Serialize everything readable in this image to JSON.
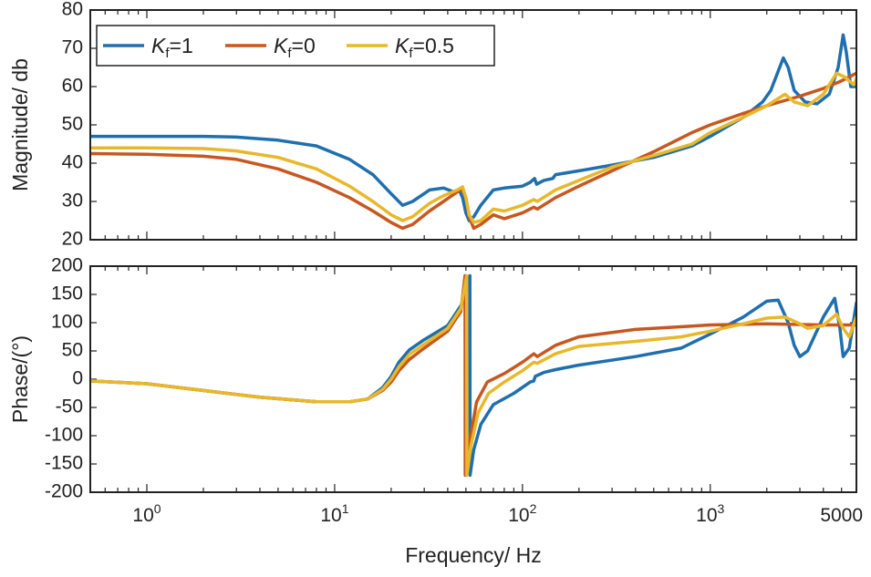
{
  "chart_data": [
    {
      "id": "magnitude",
      "type": "line",
      "xscale": "log",
      "xlim": [
        0.5,
        6000
      ],
      "ylim": [
        20,
        80
      ],
      "ylabel": "Magnitude/ db",
      "xlabel": "",
      "yticks": [
        20,
        30,
        40,
        50,
        60,
        70,
        80
      ],
      "xticks": [],
      "legend": {
        "placement": "top-left",
        "entries": [
          {
            "prefix": "K",
            "sub": "f",
            "suffix": "=1"
          },
          {
            "prefix": "K",
            "sub": "f",
            "suffix": "=0"
          },
          {
            "prefix": "K",
            "sub": "f",
            "suffix": "=0.5"
          }
        ]
      },
      "series": [
        {
          "name": "Kf=1",
          "color": "#1f6fae",
          "points": [
            [
              0.5,
              47
            ],
            [
              1,
              47
            ],
            [
              2,
              47
            ],
            [
              3,
              46.8
            ],
            [
              5,
              46
            ],
            [
              8,
              44.5
            ],
            [
              12,
              41
            ],
            [
              16,
              37
            ],
            [
              20,
              32
            ],
            [
              23,
              29
            ],
            [
              26,
              30
            ],
            [
              32,
              33
            ],
            [
              38,
              33.5
            ],
            [
              43,
              32.5
            ],
            [
              46,
              33
            ],
            [
              48,
              31
            ],
            [
              50,
              27
            ],
            [
              52,
              25
            ],
            [
              55,
              26
            ],
            [
              60,
              29
            ],
            [
              70,
              33
            ],
            [
              80,
              33.5
            ],
            [
              100,
              34
            ],
            [
              110,
              35
            ],
            [
              116,
              36
            ],
            [
              119,
              34.5
            ],
            [
              130,
              35.5
            ],
            [
              145,
              36
            ],
            [
              150,
              37
            ],
            [
              200,
              38
            ],
            [
              300,
              39.5
            ],
            [
              500,
              41.5
            ],
            [
              800,
              44.5
            ],
            [
              1000,
              47
            ],
            [
              1500,
              52
            ],
            [
              1900,
              56
            ],
            [
              2100,
              59
            ],
            [
              2300,
              64
            ],
            [
              2450,
              67.5
            ],
            [
              2600,
              65
            ],
            [
              2800,
              59
            ],
            [
              3200,
              56
            ],
            [
              3700,
              55.5
            ],
            [
              4300,
              58
            ],
            [
              4800,
              65
            ],
            [
              5100,
              73.5
            ],
            [
              5300,
              69
            ],
            [
              5600,
              60
            ],
            [
              6000,
              60
            ]
          ]
        },
        {
          "name": "Kf=0",
          "color": "#c8571f",
          "points": [
            [
              0.5,
              42.5
            ],
            [
              1,
              42.3
            ],
            [
              2,
              41.8
            ],
            [
              3,
              41
            ],
            [
              5,
              38.5
            ],
            [
              8,
              35
            ],
            [
              12,
              31
            ],
            [
              16,
              27.5
            ],
            [
              20,
              24.5
            ],
            [
              23,
              23
            ],
            [
              26,
              24
            ],
            [
              32,
              27.5
            ],
            [
              38,
              30
            ],
            [
              45,
              32.5
            ],
            [
              48,
              33.2
            ],
            [
              50,
              31
            ],
            [
              52,
              26
            ],
            [
              55,
              23
            ],
            [
              60,
              24
            ],
            [
              70,
              26.5
            ],
            [
              80,
              25.5
            ],
            [
              100,
              27
            ],
            [
              115,
              28.5
            ],
            [
              120,
              28
            ],
            [
              150,
              31
            ],
            [
              200,
              34
            ],
            [
              300,
              38
            ],
            [
              500,
              43
            ],
            [
              800,
              48
            ],
            [
              1000,
              50
            ],
            [
              1500,
              53
            ],
            [
              2000,
              55
            ],
            [
              3000,
              57.5
            ],
            [
              4000,
              59.5
            ],
            [
              5000,
              61.5
            ],
            [
              6000,
              63.5
            ]
          ]
        },
        {
          "name": "Kf=0.5",
          "color": "#e8b82a",
          "points": [
            [
              0.5,
              44
            ],
            [
              1,
              44
            ],
            [
              2,
              43.8
            ],
            [
              3,
              43.2
            ],
            [
              5,
              41.5
            ],
            [
              8,
              38.5
            ],
            [
              12,
              34
            ],
            [
              16,
              30
            ],
            [
              20,
              26.5
            ],
            [
              23,
              25
            ],
            [
              26,
              26
            ],
            [
              32,
              29.5
            ],
            [
              38,
              31.5
            ],
            [
              45,
              33
            ],
            [
              48,
              33.8
            ],
            [
              50,
              31
            ],
            [
              52,
              26.5
            ],
            [
              55,
              24.5
            ],
            [
              60,
              25
            ],
            [
              70,
              28
            ],
            [
              80,
              27.5
            ],
            [
              100,
              29
            ],
            [
              115,
              30.5
            ],
            [
              120,
              30
            ],
            [
              150,
              33
            ],
            [
              200,
              35.5
            ],
            [
              300,
              39
            ],
            [
              500,
              42
            ],
            [
              800,
              45
            ],
            [
              1000,
              48
            ],
            [
              1500,
              52
            ],
            [
              2000,
              55
            ],
            [
              2500,
              58
            ],
            [
              2800,
              56
            ],
            [
              3300,
              55
            ],
            [
              4000,
              58
            ],
            [
              4700,
              63.5
            ],
            [
              5200,
              62.5
            ],
            [
              5800,
              60.5
            ],
            [
              6000,
              62
            ]
          ]
        }
      ]
    },
    {
      "id": "phase",
      "type": "line",
      "xscale": "log",
      "xlim": [
        0.5,
        6000
      ],
      "ylim": [
        -200,
        200
      ],
      "ylabel": "Phase/(°)",
      "xlabel": "Frequency/ Hz",
      "yticks": [
        -200,
        -150,
        -100,
        -50,
        0,
        50,
        100,
        150,
        200
      ],
      "xticks": [
        {
          "value": 1,
          "base": "10",
          "exp": "0"
        },
        {
          "value": 10,
          "base": "10",
          "exp": "1"
        },
        {
          "value": 100,
          "base": "10",
          "exp": "2"
        },
        {
          "value": 1000,
          "base": "10",
          "exp": "3"
        },
        {
          "value": 5000,
          "text": "5000"
        }
      ],
      "series": [
        {
          "name": "Kf=1",
          "color": "#1f6fae",
          "points": [
            [
              0.5,
              -3
            ],
            [
              1,
              -8
            ],
            [
              2,
              -20
            ],
            [
              4,
              -32
            ],
            [
              8,
              -40
            ],
            [
              12,
              -40
            ],
            [
              15,
              -35
            ],
            [
              18,
              -15
            ],
            [
              20,
              5
            ],
            [
              22,
              30
            ],
            [
              25,
              52
            ],
            [
              30,
              70
            ],
            [
              40,
              95
            ],
            [
              47,
              130
            ],
            [
              51,
              160
            ],
            [
              52.5,
              183
            ],
            [
              52.6,
              -170
            ],
            [
              55,
              -125
            ],
            [
              60,
              -80
            ],
            [
              70,
              -45
            ],
            [
              90,
              -25
            ],
            [
              110,
              -5
            ],
            [
              115,
              -3
            ],
            [
              117,
              5
            ],
            [
              130,
              12
            ],
            [
              150,
              17
            ],
            [
              200,
              25
            ],
            [
              400,
              40
            ],
            [
              700,
              55
            ],
            [
              1000,
              80
            ],
            [
              1500,
              110
            ],
            [
              2000,
              138
            ],
            [
              2300,
              140
            ],
            [
              2600,
              100
            ],
            [
              2800,
              60
            ],
            [
              3000,
              40
            ],
            [
              3300,
              50
            ],
            [
              4000,
              110
            ],
            [
              4600,
              143
            ],
            [
              4900,
              90
            ],
            [
              5100,
              40
            ],
            [
              5500,
              55
            ],
            [
              6000,
              135
            ]
          ]
        },
        {
          "name": "Kf=0",
          "color": "#c8571f",
          "points": [
            [
              0.5,
              -3
            ],
            [
              1,
              -8
            ],
            [
              2,
              -20
            ],
            [
              4,
              -32
            ],
            [
              8,
              -40
            ],
            [
              12,
              -40
            ],
            [
              15,
              -35
            ],
            [
              18,
              -20
            ],
            [
              20,
              -5
            ],
            [
              22,
              15
            ],
            [
              25,
              35
            ],
            [
              30,
              55
            ],
            [
              40,
              85
            ],
            [
              47,
              120
            ],
            [
              49.5,
              183
            ],
            [
              49.6,
              -170
            ],
            [
              52,
              -115
            ],
            [
              57,
              -40
            ],
            [
              65,
              -5
            ],
            [
              80,
              10
            ],
            [
              100,
              30
            ],
            [
              115,
              45
            ],
            [
              120,
              40
            ],
            [
              150,
              60
            ],
            [
              200,
              75
            ],
            [
              400,
              88
            ],
            [
              1000,
              96
            ],
            [
              2000,
              98
            ],
            [
              4000,
              96
            ],
            [
              6000,
              96
            ]
          ]
        },
        {
          "name": "Kf=0.5",
          "color": "#e8b82a",
          "points": [
            [
              0.5,
              -3
            ],
            [
              1,
              -8
            ],
            [
              2,
              -20
            ],
            [
              4,
              -32
            ],
            [
              8,
              -40
            ],
            [
              12,
              -40
            ],
            [
              15,
              -35
            ],
            [
              18,
              -18
            ],
            [
              20,
              0
            ],
            [
              22,
              22
            ],
            [
              25,
              44
            ],
            [
              30,
              62
            ],
            [
              40,
              90
            ],
            [
              47,
              125
            ],
            [
              50.5,
              183
            ],
            [
              50.6,
              -170
            ],
            [
              53,
              -120
            ],
            [
              58,
              -60
            ],
            [
              66,
              -25
            ],
            [
              80,
              -5
            ],
            [
              100,
              15
            ],
            [
              115,
              30
            ],
            [
              120,
              28
            ],
            [
              150,
              45
            ],
            [
              200,
              58
            ],
            [
              400,
              67
            ],
            [
              700,
              75
            ],
            [
              1000,
              85
            ],
            [
              1500,
              98
            ],
            [
              2000,
              108
            ],
            [
              2500,
              110
            ],
            [
              3000,
              98
            ],
            [
              3300,
              90
            ],
            [
              4000,
              95
            ],
            [
              4700,
              115
            ],
            [
              5100,
              90
            ],
            [
              5500,
              75
            ],
            [
              6000,
              110
            ]
          ]
        }
      ]
    }
  ]
}
